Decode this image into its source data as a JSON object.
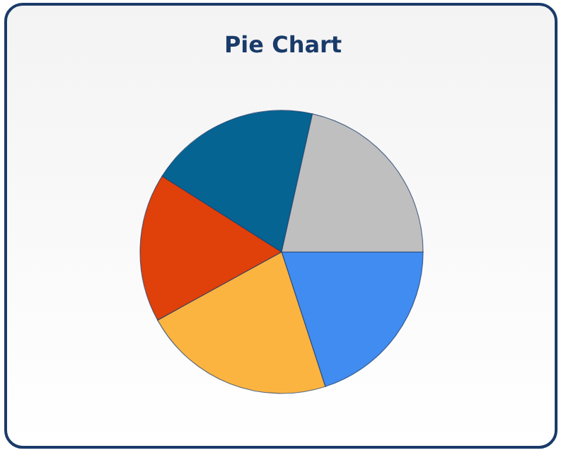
{
  "chart_data": {
    "type": "pie",
    "title": "Pie Chart",
    "categories": [
      null,
      null,
      null,
      null,
      null
    ],
    "values": [
      20,
      22,
      17,
      19.5,
      21.5
    ],
    "colors": [
      "#418cf0",
      "#fcb441",
      "#e0400a",
      "#056492",
      "#bfbfbf"
    ]
  }
}
